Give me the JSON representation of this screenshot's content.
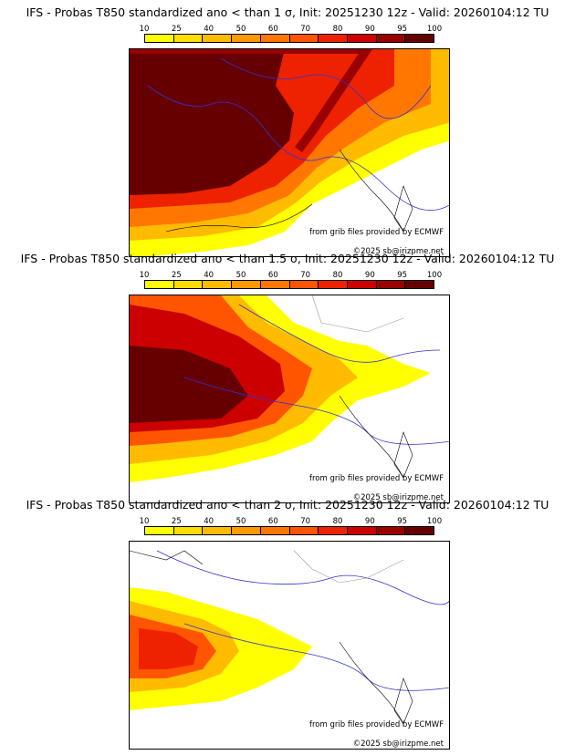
{
  "legend": {
    "ticks": [
      "10",
      "25",
      "40",
      "50",
      "60",
      "70",
      "80",
      "90",
      "95",
      "100"
    ],
    "colors": [
      "#ffff00",
      "#ffdd00",
      "#ffbb00",
      "#ff9900",
      "#ff7700",
      "#ff5500",
      "#ee2200",
      "#cc0000",
      "#990000",
      "#660000"
    ]
  },
  "panels": [
    {
      "title": "IFS - Probas T850  standardized ano < than 1 σ, Init: 20251230 12z - Valid: 20260104:12 TU",
      "credit": "from grib files provided by ECMWF",
      "copyright": "©2025 sb@irizpme.net"
    },
    {
      "title": "IFS - Probas T850  standardized ano < than 1.5 σ, Init: 20251230 12z - Valid: 20260104:12 TU",
      "credit": "from grib files provided by ECMWF",
      "copyright": "©2025 sb@irizpme.net"
    },
    {
      "title": "IFS - Probas T850  standardized ano < than 2 σ, Init: 20251230 12z - Valid: 20260104:12 TU",
      "credit": "from grib files provided by ECMWF",
      "copyright": "©2025 sb@irizpme.net"
    }
  ]
}
